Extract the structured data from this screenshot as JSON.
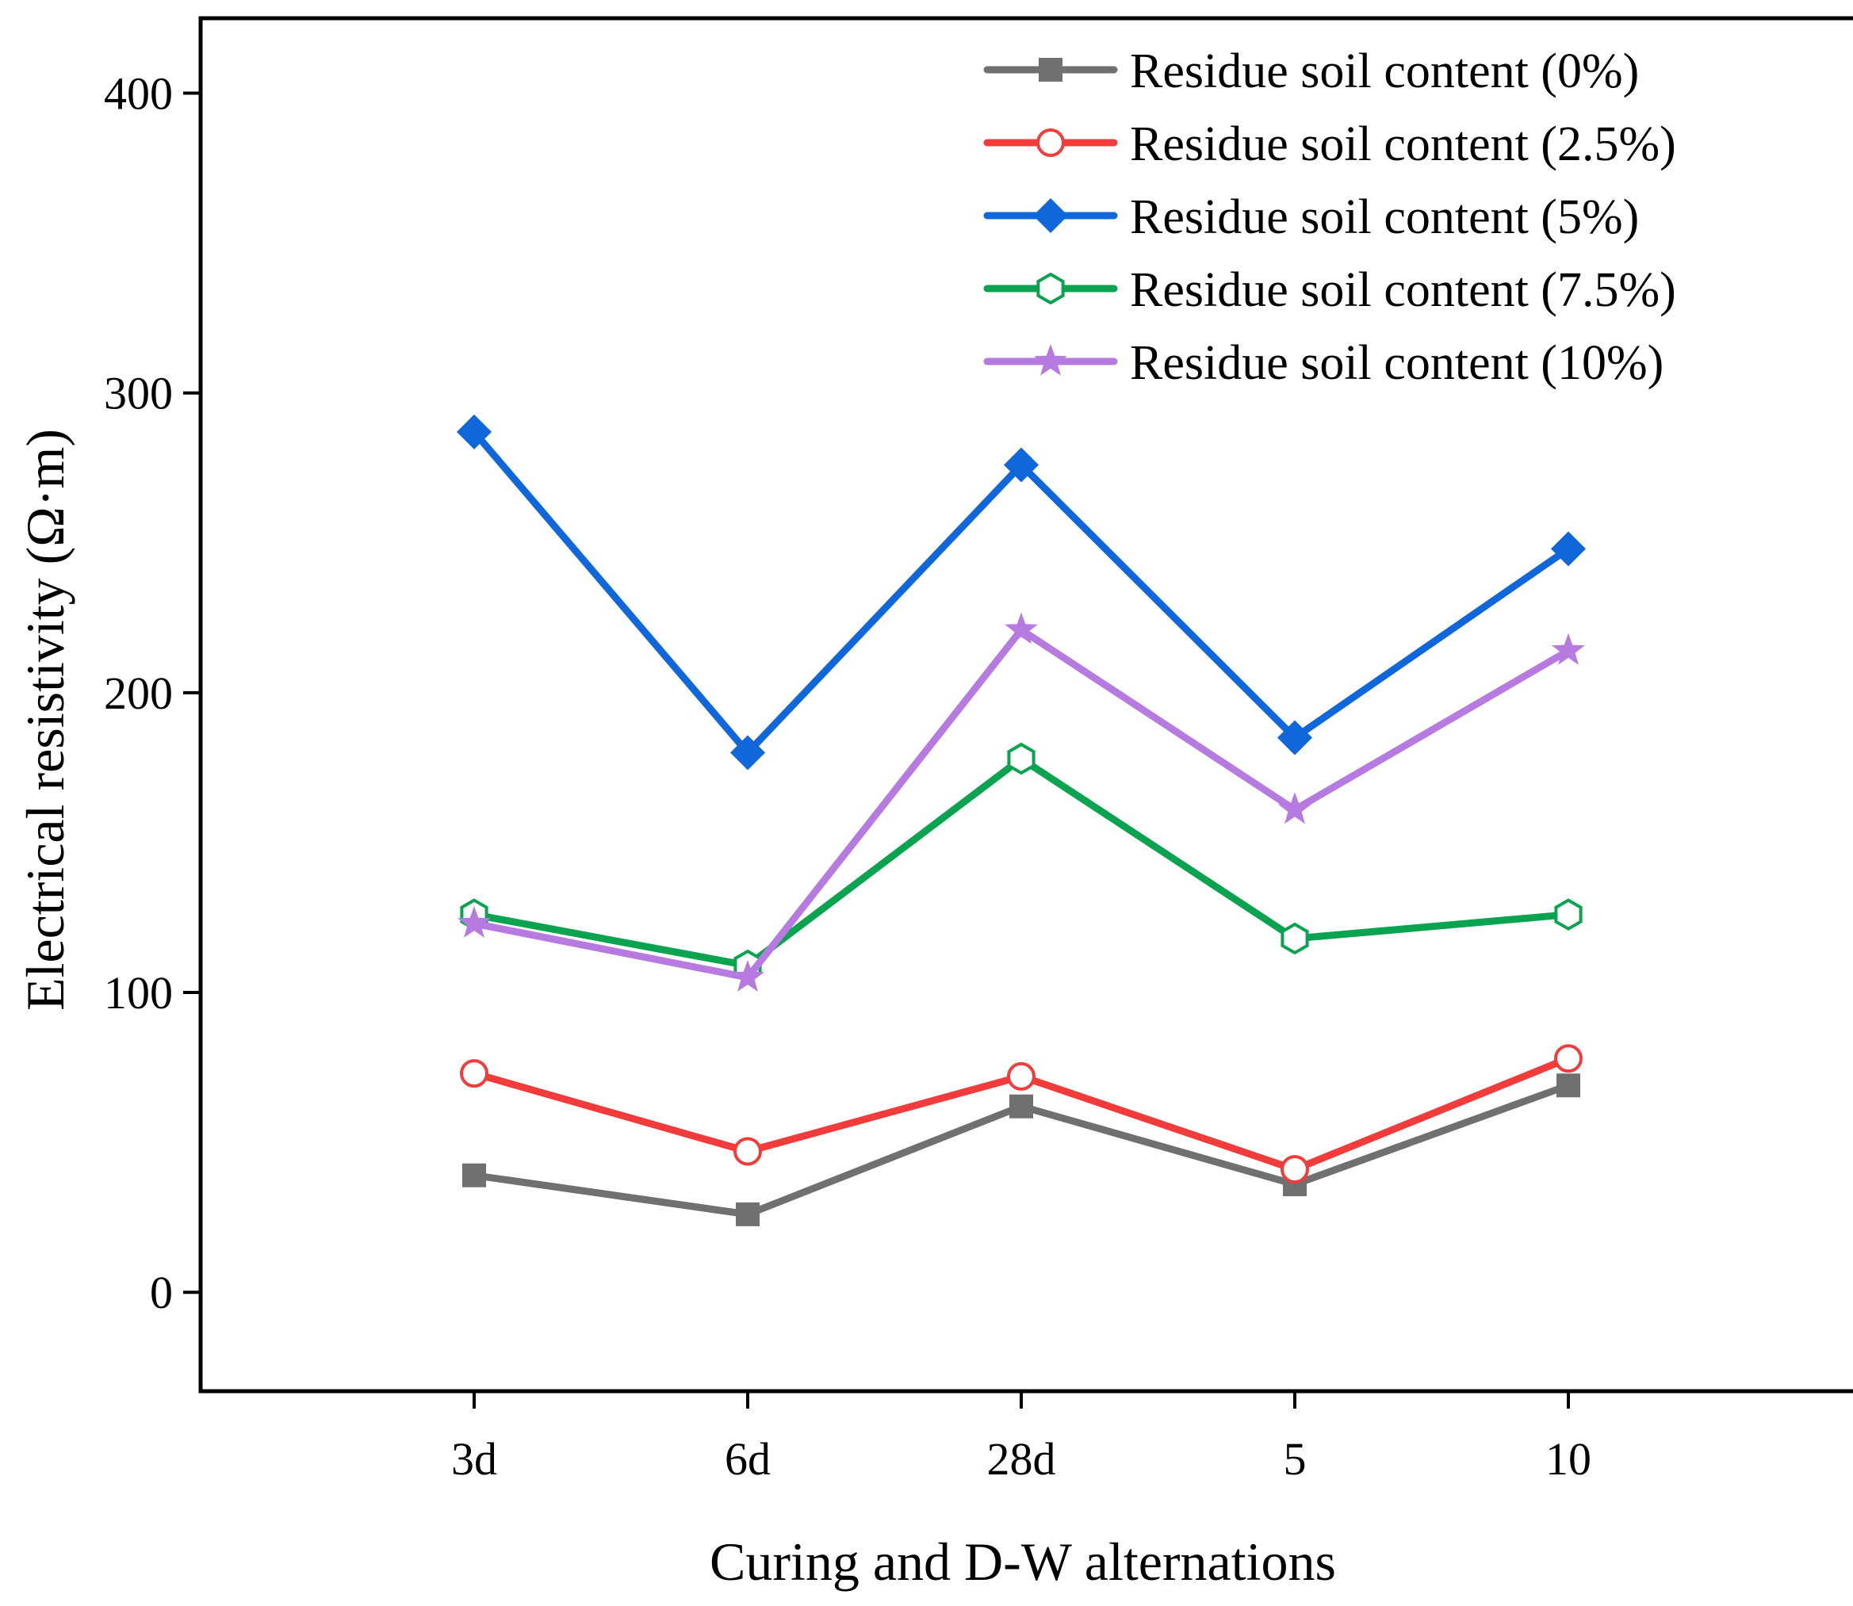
{
  "chart_data": {
    "type": "line",
    "title": "",
    "xlabel": "Curing and D-W alternations",
    "ylabel": "Electrical resistivity (Ω·m)",
    "categories": [
      "3d",
      "6d",
      "28d",
      "5",
      "10"
    ],
    "ylim": [
      -33,
      425
    ],
    "yticks": [
      0,
      100,
      200,
      300,
      400
    ],
    "grid": false,
    "legend_position": "top-right",
    "series": [
      {
        "name": "Residue soil content (0%)",
        "color": "#707070",
        "marker": "square",
        "values": [
          39,
          26,
          62,
          36,
          69
        ]
      },
      {
        "name": "Residue soil content (2.5%)",
        "color": "#f23b3b",
        "marker": "circle-open",
        "values": [
          73,
          47,
          72,
          41,
          78
        ]
      },
      {
        "name": "Residue soil content (5%)",
        "color": "#0f67db",
        "marker": "diamond",
        "values": [
          287,
          180,
          276,
          185,
          248
        ]
      },
      {
        "name": "Residue soil content (7.5%)",
        "color": "#0aa34f",
        "marker": "hexagon-open",
        "values": [
          126,
          109,
          178,
          118,
          126
        ]
      },
      {
        "name": "Residue soil content (10%)",
        "color": "#b77ae0",
        "marker": "star",
        "values": [
          123,
          105,
          221,
          161,
          214
        ]
      }
    ]
  }
}
